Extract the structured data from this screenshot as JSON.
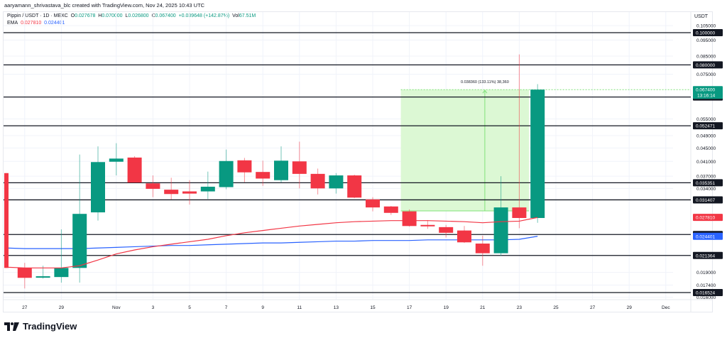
{
  "credit": "aaryamann_shrivastava_blc created with TradingView.com, Nov 24, 2025 10:43 UTC",
  "legend": {
    "symbol": "Pippin / USDT · 1D · MEXC",
    "o_label": "O",
    "o": "0.027678",
    "h_label": "H",
    "h": "0.070000",
    "l_label": "L",
    "l": "0.026800",
    "c_label": "C",
    "c": "0.067400",
    "change": "+0.039648 (+142.87%)",
    "vol_label": "Vol",
    "vol": "67.51M",
    "ema_label": "EMA",
    "ema1": "0.027810",
    "ema2": "0.024401"
  },
  "currency": "USDT",
  "brand": "TradingView",
  "colors": {
    "up": "#089981",
    "down": "#f23645",
    "ema_fast": "#f23645",
    "ema_slow": "#2962ff",
    "measure_fill": "#dcf8d4",
    "measure_line": "#81e27a",
    "hline": "#131722"
  },
  "measure_label": "0.038360 (133.11%) 38,360",
  "chart_data": {
    "type": "candlestick",
    "title": "Pippin / USDT · 1D · MEXC",
    "xlabel": "",
    "ylabel": "USDT",
    "scale": "log",
    "ylim": [
      0.016,
      0.105
    ],
    "x_ticks": [
      "27",
      "29",
      "Nov",
      "3",
      "5",
      "7",
      "9",
      "11",
      "13",
      "15",
      "17",
      "19",
      "21",
      "23",
      "25",
      "27",
      "29",
      "Dec"
    ],
    "y_ticks": [
      "0.105000",
      "0.095000",
      "0.085000",
      "0.075000",
      "0.055000",
      "0.049000",
      "0.045000",
      "0.041000",
      "0.037000",
      "0.034000",
      "0.019000",
      "0.017400",
      "0.016000"
    ],
    "horizontal_levels": [
      "0.100000",
      "0.080000",
      "0.064031",
      "0.052471",
      "0.035351",
      "0.031407",
      "0.024706",
      "0.021364",
      "0.016524"
    ],
    "price_tags": [
      {
        "label": "0.067400",
        "sub": "13:16:14",
        "color": "#089981"
      },
      {
        "label": "0.027810",
        "color": "#f23645"
      },
      {
        "label": "0.024401",
        "color": "#2962ff"
      }
    ],
    "candles": [
      {
        "date": "Oct 26",
        "o": 0.0378,
        "h": 0.0378,
        "l": 0.0196,
        "c": 0.0196
      },
      {
        "date": "Oct 27",
        "o": 0.0196,
        "h": 0.0203,
        "l": 0.017,
        "c": 0.0183
      },
      {
        "date": "Oct 28",
        "o": 0.0184,
        "h": 0.0199,
        "l": 0.0182,
        "c": 0.0185
      },
      {
        "date": "Oct 29",
        "o": 0.0184,
        "h": 0.0256,
        "l": 0.0177,
        "c": 0.0196
      },
      {
        "date": "Oct 30",
        "o": 0.0196,
        "h": 0.043,
        "l": 0.0177,
        "c": 0.0285
      },
      {
        "date": "Oct 31",
        "o": 0.0288,
        "h": 0.0455,
        "l": 0.0272,
        "c": 0.0408
      },
      {
        "date": "Nov 1",
        "o": 0.0409,
        "h": 0.0465,
        "l": 0.0372,
        "c": 0.0418
      },
      {
        "date": "Nov 2",
        "o": 0.0421,
        "h": 0.0425,
        "l": 0.0356,
        "c": 0.0354
      },
      {
        "date": "Nov 3",
        "o": 0.0352,
        "h": 0.0372,
        "l": 0.032,
        "c": 0.0339
      },
      {
        "date": "Nov 4",
        "o": 0.0337,
        "h": 0.0366,
        "l": 0.0315,
        "c": 0.0327
      },
      {
        "date": "Nov 5",
        "o": 0.0333,
        "h": 0.036,
        "l": 0.0304,
        "c": 0.0328
      },
      {
        "date": "Nov 6",
        "o": 0.0333,
        "h": 0.0382,
        "l": 0.0316,
        "c": 0.0344
      },
      {
        "date": "Nov 7",
        "o": 0.0343,
        "h": 0.0445,
        "l": 0.0338,
        "c": 0.0411
      },
      {
        "date": "Nov 8",
        "o": 0.0413,
        "h": 0.042,
        "l": 0.0355,
        "c": 0.038
      },
      {
        "date": "Nov 9",
        "o": 0.0381,
        "h": 0.0412,
        "l": 0.0346,
        "c": 0.0364
      },
      {
        "date": "Nov 10",
        "o": 0.036,
        "h": 0.0455,
        "l": 0.0354,
        "c": 0.0412
      },
      {
        "date": "Nov 11",
        "o": 0.041,
        "h": 0.047,
        "l": 0.034,
        "c": 0.0376
      },
      {
        "date": "Nov 12",
        "o": 0.0376,
        "h": 0.039,
        "l": 0.0326,
        "c": 0.034
      },
      {
        "date": "Nov 13",
        "o": 0.034,
        "h": 0.0378,
        "l": 0.0328,
        "c": 0.0372
      },
      {
        "date": "Nov 14",
        "o": 0.0372,
        "h": 0.0374,
        "l": 0.0318,
        "c": 0.0319
      },
      {
        "date": "Nov 15",
        "o": 0.0315,
        "h": 0.032,
        "l": 0.029,
        "c": 0.0298
      },
      {
        "date": "Nov 16",
        "o": 0.03,
        "h": 0.0301,
        "l": 0.0283,
        "c": 0.0287
      },
      {
        "date": "Nov 17",
        "o": 0.029,
        "h": 0.0294,
        "l": 0.0261,
        "c": 0.0262
      },
      {
        "date": "Nov 18",
        "o": 0.0264,
        "h": 0.0273,
        "l": 0.0257,
        "c": 0.0262
      },
      {
        "date": "Nov 19",
        "o": 0.026,
        "h": 0.0264,
        "l": 0.0242,
        "c": 0.025
      },
      {
        "date": "Nov 20",
        "o": 0.0254,
        "h": 0.0262,
        "l": 0.0233,
        "c": 0.0234
      },
      {
        "date": "Nov 21",
        "o": 0.0232,
        "h": 0.0245,
        "l": 0.0199,
        "c": 0.0217
      },
      {
        "date": "Nov 22",
        "o": 0.0217,
        "h": 0.037,
        "l": 0.0213,
        "c": 0.0298
      },
      {
        "date": "Nov 23",
        "o": 0.0298,
        "h": 0.086,
        "l": 0.0258,
        "c": 0.0277
      },
      {
        "date": "Nov 24",
        "o": 0.0277,
        "h": 0.07,
        "l": 0.0268,
        "c": 0.0674
      }
    ],
    "series": [
      {
        "name": "EMA 0.027810",
        "color": "#f23645"
      },
      {
        "name": "EMA 0.024401",
        "color": "#2962ff"
      }
    ],
    "measure": {
      "from": 0.0291,
      "to": 0.0674,
      "label": "0.038360 (133.11%) 38,360"
    }
  }
}
